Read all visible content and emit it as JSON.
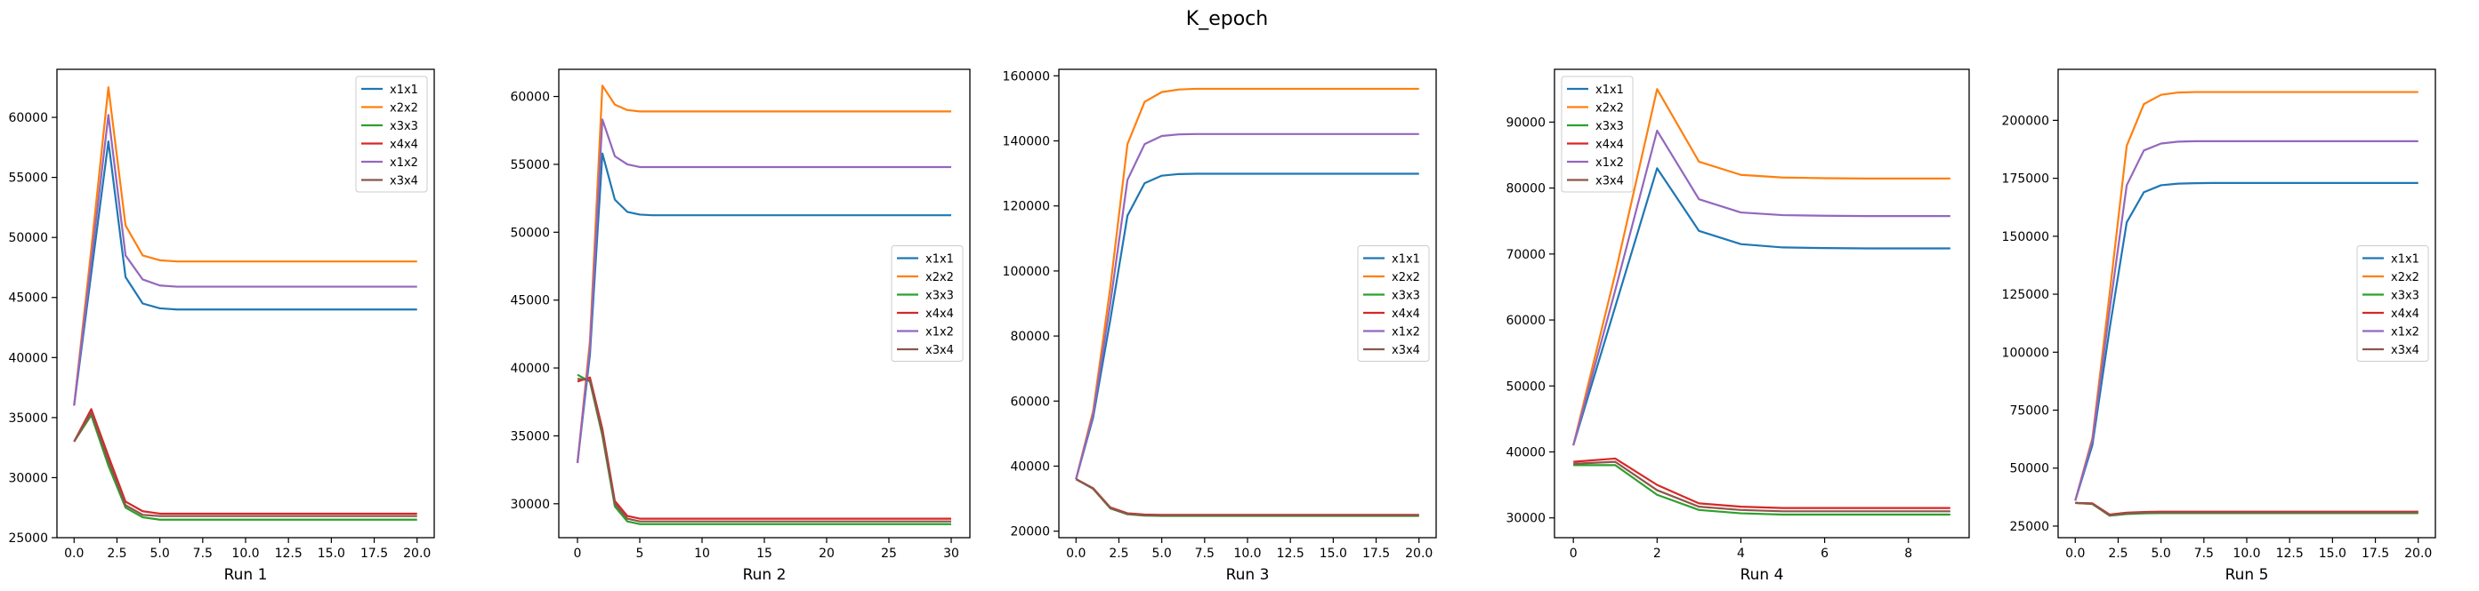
{
  "figure": {
    "title": "K_epoch"
  },
  "legend_labels": [
    "x1x1",
    "x2x2",
    "x3x3",
    "x4x4",
    "x1x2",
    "x3x4"
  ],
  "colors": {
    "x1x1": "#1f77b4",
    "x2x2": "#ff7f0e",
    "x3x3": "#2ca02c",
    "x4x4": "#d62728",
    "x1x2": "#9467bd",
    "x3x4": "#8c564b"
  },
  "chart_data": [
    {
      "type": "line",
      "title": "",
      "xlabel": "Run 1",
      "ylabel": "",
      "xlim": [
        -1,
        21
      ],
      "ylim": [
        25000,
        64000
      ],
      "xticks": [
        0.0,
        2.5,
        5.0,
        7.5,
        10.0,
        12.5,
        15.0,
        17.5,
        20.0
      ],
      "xtick_labels": [
        "0.0",
        "2.5",
        "5.0",
        "7.5",
        "10.0",
        "12.5",
        "15.0",
        "17.5",
        "20.0"
      ],
      "yticks": [
        25000,
        30000,
        35000,
        40000,
        45000,
        50000,
        55000,
        60000
      ],
      "legend": "top-right",
      "x": [
        0,
        1,
        2,
        3,
        4,
        5,
        6,
        7,
        8,
        9,
        10,
        11,
        12,
        13,
        14,
        15,
        16,
        17,
        18,
        19,
        20
      ],
      "series": [
        {
          "name": "x1x1",
          "values": [
            36000,
            47000,
            58000,
            46700,
            44500,
            44100,
            44000,
            44000,
            44000,
            44000,
            44000,
            44000,
            44000,
            44000,
            44000,
            44000,
            44000,
            44000,
            44000,
            44000,
            44000
          ]
        },
        {
          "name": "x2x2",
          "values": [
            36000,
            49000,
            62500,
            51000,
            48500,
            48100,
            48000,
            48000,
            48000,
            48000,
            48000,
            48000,
            48000,
            48000,
            48000,
            48000,
            48000,
            48000,
            48000,
            48000,
            48000
          ]
        },
        {
          "name": "x3x3",
          "values": [
            33000,
            35200,
            31000,
            27500,
            26700,
            26500,
            26500,
            26500,
            26500,
            26500,
            26500,
            26500,
            26500,
            26500,
            26500,
            26500,
            26500,
            26500,
            26500,
            26500,
            26500
          ]
        },
        {
          "name": "x4x4",
          "values": [
            33000,
            35700,
            31800,
            28000,
            27200,
            27000,
            27000,
            27000,
            27000,
            27000,
            27000,
            27000,
            27000,
            27000,
            27000,
            27000,
            27000,
            27000,
            27000,
            27000,
            27000
          ]
        },
        {
          "name": "x1x2",
          "values": [
            36000,
            48000,
            60200,
            48500,
            46500,
            46000,
            45900,
            45900,
            45900,
            45900,
            45900,
            45900,
            45900,
            45900,
            45900,
            45900,
            45900,
            45900,
            45900,
            45900,
            45900
          ]
        },
        {
          "name": "x3x4",
          "values": [
            33000,
            35400,
            31400,
            27700,
            26900,
            26800,
            26800,
            26800,
            26800,
            26800,
            26800,
            26800,
            26800,
            26800,
            26800,
            26800,
            26800,
            26800,
            26800,
            26800,
            26800
          ]
        }
      ]
    },
    {
      "type": "line",
      "title": "",
      "xlabel": "Run 2",
      "ylabel": "",
      "xlim": [
        -1.5,
        31.5
      ],
      "ylim": [
        27500,
        62000
      ],
      "xticks": [
        0,
        5,
        10,
        15,
        20,
        25,
        30
      ],
      "xtick_labels": [
        "0",
        "5",
        "10",
        "15",
        "20",
        "25",
        "30"
      ],
      "yticks": [
        30000,
        35000,
        40000,
        45000,
        50000,
        55000,
        60000
      ],
      "legend": "center-right",
      "x": [
        0,
        1,
        2,
        3,
        4,
        5,
        6,
        7,
        8,
        9,
        10,
        11,
        12,
        13,
        14,
        15,
        16,
        17,
        18,
        19,
        20,
        21,
        22,
        23,
        24,
        25,
        26,
        27,
        28,
        29,
        30
      ],
      "series": [
        {
          "name": "x1x1",
          "values": [
            33000,
            41000,
            55800,
            52400,
            51500,
            51300,
            51250,
            51250,
            51250,
            51250,
            51250,
            51250,
            51250,
            51250,
            51250,
            51250,
            51250,
            51250,
            51250,
            51250,
            51250,
            51250,
            51250,
            51250,
            51250,
            51250,
            51250,
            51250,
            51250,
            51250,
            51250
          ]
        },
        {
          "name": "x2x2",
          "values": [
            33000,
            42000,
            60800,
            59400,
            59000,
            58900,
            58900,
            58900,
            58900,
            58900,
            58900,
            58900,
            58900,
            58900,
            58900,
            58900,
            58900,
            58900,
            58900,
            58900,
            58900,
            58900,
            58900,
            58900,
            58900,
            58900,
            58900,
            58900,
            58900,
            58900,
            58900
          ]
        },
        {
          "name": "x3x3",
          "values": [
            39500,
            39000,
            35000,
            29800,
            28700,
            28500,
            28500,
            28500,
            28500,
            28500,
            28500,
            28500,
            28500,
            28500,
            28500,
            28500,
            28500,
            28500,
            28500,
            28500,
            28500,
            28500,
            28500,
            28500,
            28500,
            28500,
            28500,
            28500,
            28500,
            28500,
            28500
          ]
        },
        {
          "name": "x4x4",
          "values": [
            39000,
            39300,
            35500,
            30200,
            29100,
            28900,
            28900,
            28900,
            28900,
            28900,
            28900,
            28900,
            28900,
            28900,
            28900,
            28900,
            28900,
            28900,
            28900,
            28900,
            28900,
            28900,
            28900,
            28900,
            28900,
            28900,
            28900,
            28900,
            28900,
            28900,
            28900
          ]
        },
        {
          "name": "x1x2",
          "values": [
            33000,
            41500,
            58300,
            55600,
            55000,
            54800,
            54800,
            54800,
            54800,
            54800,
            54800,
            54800,
            54800,
            54800,
            54800,
            54800,
            54800,
            54800,
            54800,
            54800,
            54800,
            54800,
            54800,
            54800,
            54800,
            54800,
            54800,
            54800,
            54800,
            54800,
            54800
          ]
        },
        {
          "name": "x3x4",
          "values": [
            39200,
            39100,
            35200,
            30000,
            28900,
            28700,
            28700,
            28700,
            28700,
            28700,
            28700,
            28700,
            28700,
            28700,
            28700,
            28700,
            28700,
            28700,
            28700,
            28700,
            28700,
            28700,
            28700,
            28700,
            28700,
            28700,
            28700,
            28700,
            28700,
            28700,
            28700
          ]
        }
      ]
    },
    {
      "type": "line",
      "title": "",
      "xlabel": "Run 3",
      "ylabel": "",
      "xlim": [
        -1,
        21
      ],
      "ylim": [
        18000,
        162000
      ],
      "xticks": [
        0.0,
        2.5,
        5.0,
        7.5,
        10.0,
        12.5,
        15.0,
        17.5,
        20.0
      ],
      "xtick_labels": [
        "0.0",
        "2.5",
        "5.0",
        "7.5",
        "10.0",
        "12.5",
        "15.0",
        "17.5",
        "20.0"
      ],
      "yticks": [
        20000,
        40000,
        60000,
        80000,
        100000,
        120000,
        140000,
        160000
      ],
      "legend": "center-right",
      "x": [
        0,
        1,
        2,
        3,
        4,
        5,
        6,
        7,
        8,
        9,
        10,
        11,
        12,
        13,
        14,
        15,
        16,
        17,
        18,
        19,
        20
      ],
      "series": [
        {
          "name": "x1x1",
          "values": [
            36000,
            55000,
            85000,
            117000,
            127000,
            129300,
            129800,
            129900,
            129900,
            129900,
            129900,
            129900,
            129900,
            129900,
            129900,
            129900,
            129900,
            129900,
            129900,
            129900,
            129900
          ]
        },
        {
          "name": "x2x2",
          "values": [
            36000,
            57000,
            95000,
            139000,
            152000,
            155000,
            155800,
            156000,
            156000,
            156000,
            156000,
            156000,
            156000,
            156000,
            156000,
            156000,
            156000,
            156000,
            156000,
            156000,
            156000
          ]
        },
        {
          "name": "x3x3",
          "values": [
            36000,
            33000,
            27000,
            25200,
            24800,
            24700,
            24700,
            24700,
            24700,
            24700,
            24700,
            24700,
            24700,
            24700,
            24700,
            24700,
            24700,
            24700,
            24700,
            24700,
            24700
          ]
        },
        {
          "name": "x4x4",
          "values": [
            36000,
            33200,
            27300,
            25500,
            25100,
            25000,
            25000,
            25000,
            25000,
            25000,
            25000,
            25000,
            25000,
            25000,
            25000,
            25000,
            25000,
            25000,
            25000,
            25000,
            25000
          ]
        },
        {
          "name": "x1x2",
          "values": [
            36000,
            56000,
            90000,
            128000,
            139000,
            141500,
            142000,
            142100,
            142100,
            142100,
            142100,
            142100,
            142100,
            142100,
            142100,
            142100,
            142100,
            142100,
            142100,
            142100,
            142100
          ]
        },
        {
          "name": "x3x4",
          "values": [
            36000,
            33100,
            27100,
            25300,
            24900,
            24850,
            24850,
            24850,
            24850,
            24850,
            24850,
            24850,
            24850,
            24850,
            24850,
            24850,
            24850,
            24850,
            24850,
            24850,
            24850
          ]
        }
      ]
    },
    {
      "type": "line",
      "title": "",
      "xlabel": "Run 4",
      "ylabel": "",
      "xlim": [
        -0.45,
        9.45
      ],
      "ylim": [
        27000,
        98000
      ],
      "xticks": [
        0,
        2,
        4,
        6,
        8
      ],
      "xtick_labels": [
        "0",
        "2",
        "4",
        "6",
        "8"
      ],
      "yticks": [
        30000,
        40000,
        50000,
        60000,
        70000,
        80000,
        90000
      ],
      "legend": "top-left",
      "x": [
        0,
        1,
        2,
        3,
        4,
        5,
        6,
        7,
        8,
        9
      ],
      "series": [
        {
          "name": "x1x1",
          "values": [
            41000,
            62000,
            83000,
            73500,
            71500,
            71000,
            70900,
            70850,
            70850,
            70850
          ]
        },
        {
          "name": "x2x2",
          "values": [
            41000,
            67000,
            95000,
            84000,
            82000,
            81600,
            81500,
            81450,
            81450,
            81450
          ]
        },
        {
          "name": "x3x3",
          "values": [
            38000,
            38000,
            33500,
            31200,
            30700,
            30500,
            30500,
            30500,
            30500,
            30500
          ]
        },
        {
          "name": "x4x4",
          "values": [
            38500,
            39000,
            35000,
            32200,
            31700,
            31500,
            31500,
            31500,
            31500,
            31500
          ]
        },
        {
          "name": "x1x2",
          "values": [
            41000,
            64500,
            88700,
            78300,
            76300,
            75900,
            75800,
            75750,
            75750,
            75750
          ]
        },
        {
          "name": "x3x4",
          "values": [
            38200,
            38500,
            34200,
            31700,
            31200,
            31000,
            31000,
            31000,
            31000,
            31000
          ]
        }
      ]
    },
    {
      "type": "line",
      "title": "",
      "xlabel": "Run 5",
      "ylabel": "",
      "xlim": [
        -1,
        21
      ],
      "ylim": [
        20000,
        222000
      ],
      "xticks": [
        0.0,
        2.5,
        5.0,
        7.5,
        10.0,
        12.5,
        15.0,
        17.5,
        20.0
      ],
      "xtick_labels": [
        "0.0",
        "2.5",
        "5.0",
        "7.5",
        "10.0",
        "12.5",
        "15.0",
        "17.5",
        "20.0"
      ],
      "yticks": [
        25000,
        50000,
        75000,
        100000,
        125000,
        150000,
        175000,
        200000
      ],
      "legend": "center-right",
      "x": [
        0,
        1,
        2,
        3,
        4,
        5,
        6,
        7,
        8,
        9,
        10,
        11,
        12,
        13,
        14,
        15,
        16,
        17,
        18,
        19,
        20
      ],
      "series": [
        {
          "name": "x1x1",
          "values": [
            36000,
            60000,
            110000,
            156000,
            169000,
            172000,
            172700,
            172900,
            173000,
            173000,
            173000,
            173000,
            173000,
            173000,
            173000,
            173000,
            173000,
            173000,
            173000,
            173000,
            173000
          ]
        },
        {
          "name": "x2x2",
          "values": [
            36000,
            63000,
            125000,
            189000,
            207000,
            211000,
            212000,
            212200,
            212200,
            212200,
            212200,
            212200,
            212200,
            212200,
            212200,
            212200,
            212200,
            212200,
            212200,
            212200,
            212200
          ]
        },
        {
          "name": "x3x3",
          "values": [
            35000,
            34500,
            29500,
            30200,
            30500,
            30600,
            30600,
            30600,
            30600,
            30600,
            30600,
            30600,
            30600,
            30600,
            30600,
            30600,
            30600,
            30600,
            30600,
            30600,
            30600
          ]
        },
        {
          "name": "x4x4",
          "values": [
            35000,
            34800,
            30000,
            30800,
            31100,
            31200,
            31200,
            31200,
            31200,
            31200,
            31200,
            31200,
            31200,
            31200,
            31200,
            31200,
            31200,
            31200,
            31200,
            31200,
            31200
          ]
        },
        {
          "name": "x1x2",
          "values": [
            36000,
            62000,
            118000,
            172000,
            187000,
            190000,
            190800,
            191000,
            191000,
            191000,
            191000,
            191000,
            191000,
            191000,
            191000,
            191000,
            191000,
            191000,
            191000,
            191000,
            191000
          ]
        },
        {
          "name": "x3x4",
          "values": [
            35000,
            34600,
            29700,
            30500,
            30800,
            30900,
            30900,
            30900,
            30900,
            30900,
            30900,
            30900,
            30900,
            30900,
            30900,
            30900,
            30900,
            30900,
            30900,
            30900,
            30900
          ]
        }
      ]
    }
  ]
}
